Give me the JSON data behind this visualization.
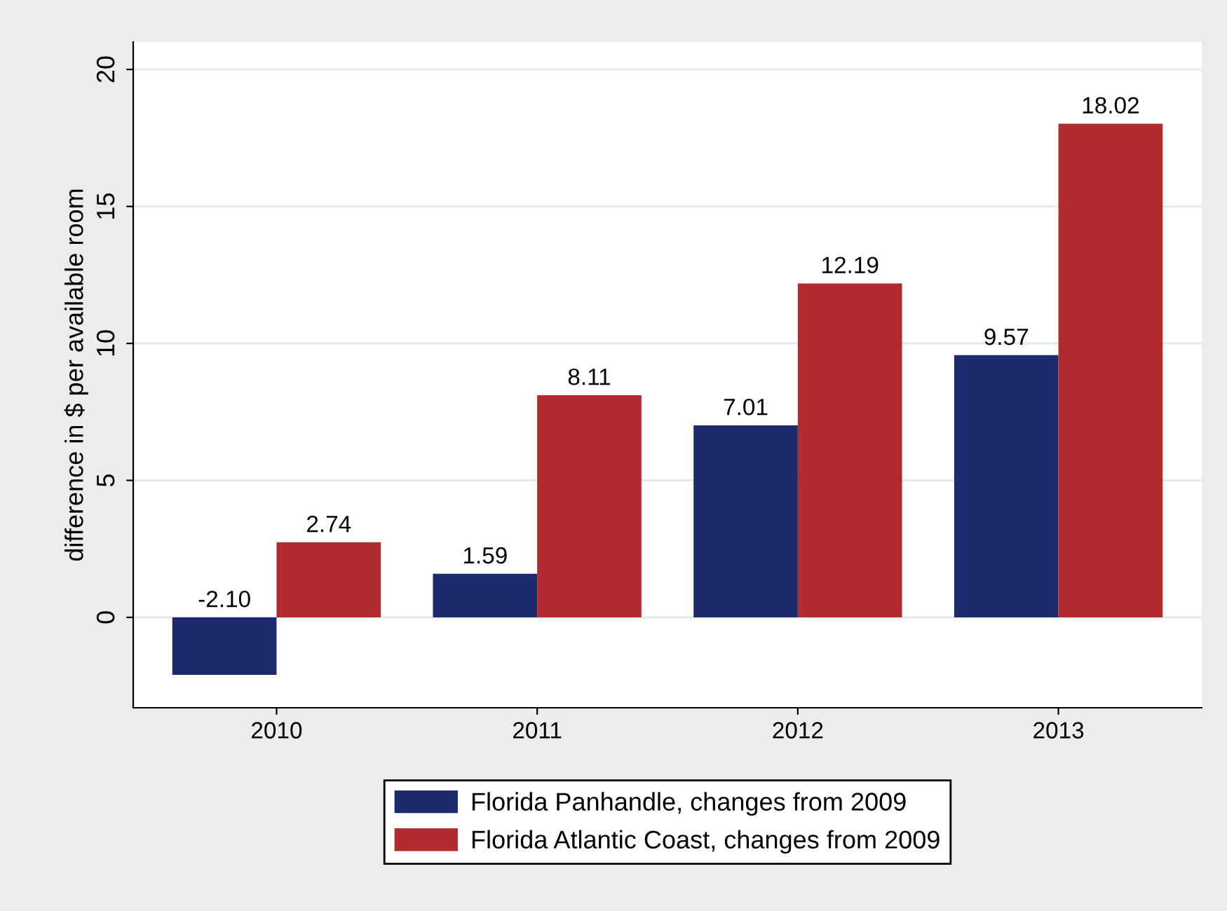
{
  "chart_data": {
    "type": "bar",
    "ylabel": "difference in $ per available room",
    "categories": [
      "2010",
      "2011",
      "2012",
      "2013"
    ],
    "series": [
      {
        "name": "Florida Panhandle, changes from 2009",
        "color": "#1c2a6e",
        "values": [
          -2.1,
          1.59,
          7.01,
          9.57
        ],
        "value_labels": [
          "-2.10",
          "1.59",
          "7.01",
          "9.57"
        ]
      },
      {
        "name": "Florida Atlantic Coast, changes from 2009",
        "color": "#b02a2e",
        "values": [
          2.74,
          8.11,
          12.19,
          18.02
        ],
        "value_labels": [
          "2.74",
          "8.11",
          "12.19",
          "18.02"
        ]
      }
    ],
    "ylim": [
      -3.3,
      21
    ],
    "yticks": [
      0,
      5,
      10,
      15,
      20
    ],
    "grid": "y",
    "legend": "bottom"
  }
}
